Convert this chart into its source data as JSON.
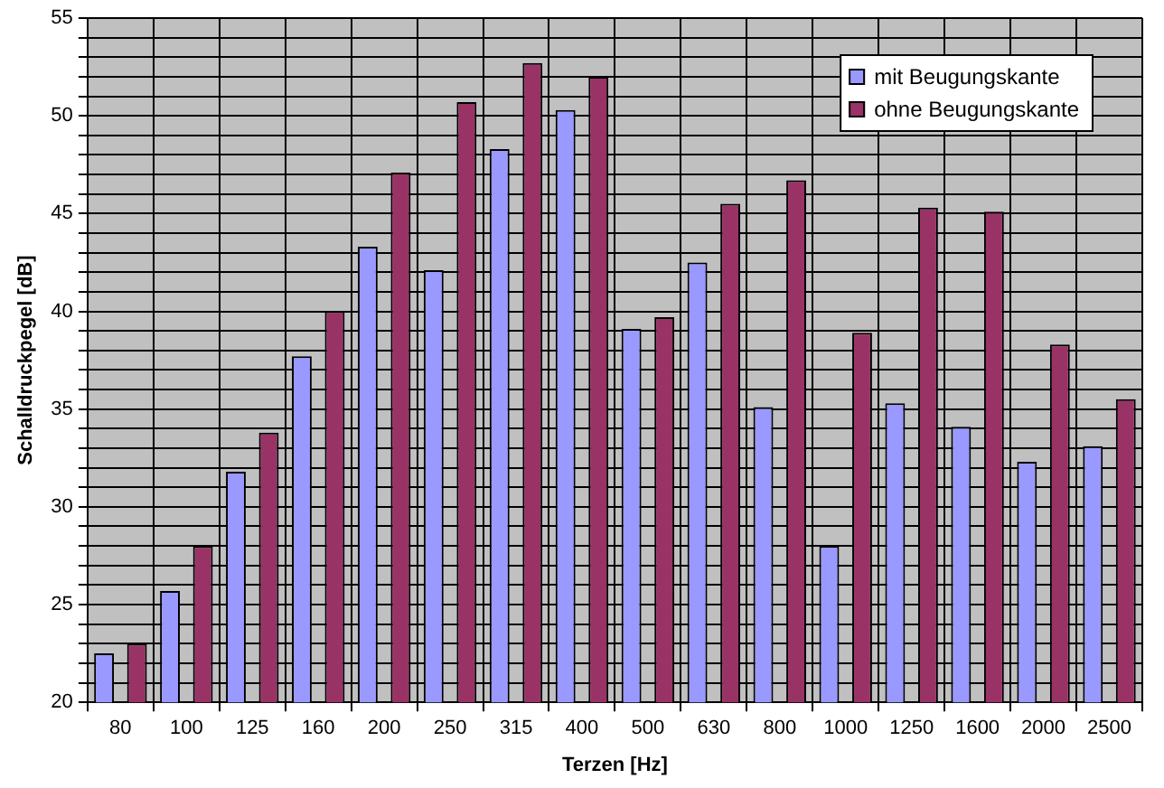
{
  "chart_data": {
    "type": "bar",
    "xlabel": "Terzen [Hz]",
    "ylabel": "Schalldruckpegel [dB]",
    "categories": [
      "80",
      "100",
      "125",
      "160",
      "200",
      "250",
      "315",
      "400",
      "500",
      "630",
      "800",
      "1000",
      "1250",
      "1600",
      "2000",
      "2500"
    ],
    "series": [
      {
        "name": "mit Beugungskante",
        "color": "#9999ff",
        "values": [
          22.5,
          25.7,
          31.8,
          37.7,
          43.3,
          42.1,
          48.3,
          50.3,
          39.1,
          42.5,
          35.1,
          28.0,
          35.3,
          34.1,
          32.3,
          33.1
        ]
      },
      {
        "name": "ohne Beugungskante",
        "color": "#993366",
        "values": [
          23.0,
          28.0,
          33.8,
          40.0,
          47.1,
          50.7,
          52.7,
          52.0,
          39.7,
          45.5,
          46.7,
          38.9,
          45.3,
          45.1,
          38.3,
          35.5
        ]
      }
    ],
    "ylim": [
      20,
      55
    ],
    "yticks": [
      20,
      {
        "value": 21,
        "label": null
      },
      {
        "value": 22,
        "label": null
      },
      {
        "value": 23,
        "label": null
      },
      {
        "value": 24,
        "label": null
      },
      25,
      {
        "value": 26,
        "label": null
      },
      {
        "value": 27,
        "label": null
      },
      {
        "value": 28,
        "label": null
      },
      {
        "value": 29,
        "label": null
      },
      30,
      {
        "value": 31,
        "label": null
      },
      {
        "value": 32,
        "label": null
      },
      {
        "value": 33,
        "label": null
      },
      {
        "value": 34,
        "label": null
      },
      35,
      {
        "value": 36,
        "label": null
      },
      {
        "value": 37,
        "label": null
      },
      {
        "value": 38,
        "label": null
      },
      {
        "value": 39,
        "label": null
      },
      40,
      {
        "value": 41,
        "label": null
      },
      {
        "value": 42,
        "label": null
      },
      {
        "value": 43,
        "label": null
      },
      {
        "value": 44,
        "label": null
      },
      45,
      {
        "value": 46,
        "label": null
      },
      {
        "value": 47,
        "label": null
      },
      {
        "value": 48,
        "label": null
      },
      {
        "value": 49,
        "label": null
      },
      50,
      {
        "value": 51,
        "label": null
      },
      {
        "value": 52,
        "label": null
      },
      {
        "value": 53,
        "label": null
      },
      {
        "value": 54,
        "label": null
      },
      55
    ],
    "grid": true,
    "legend": "top right"
  }
}
